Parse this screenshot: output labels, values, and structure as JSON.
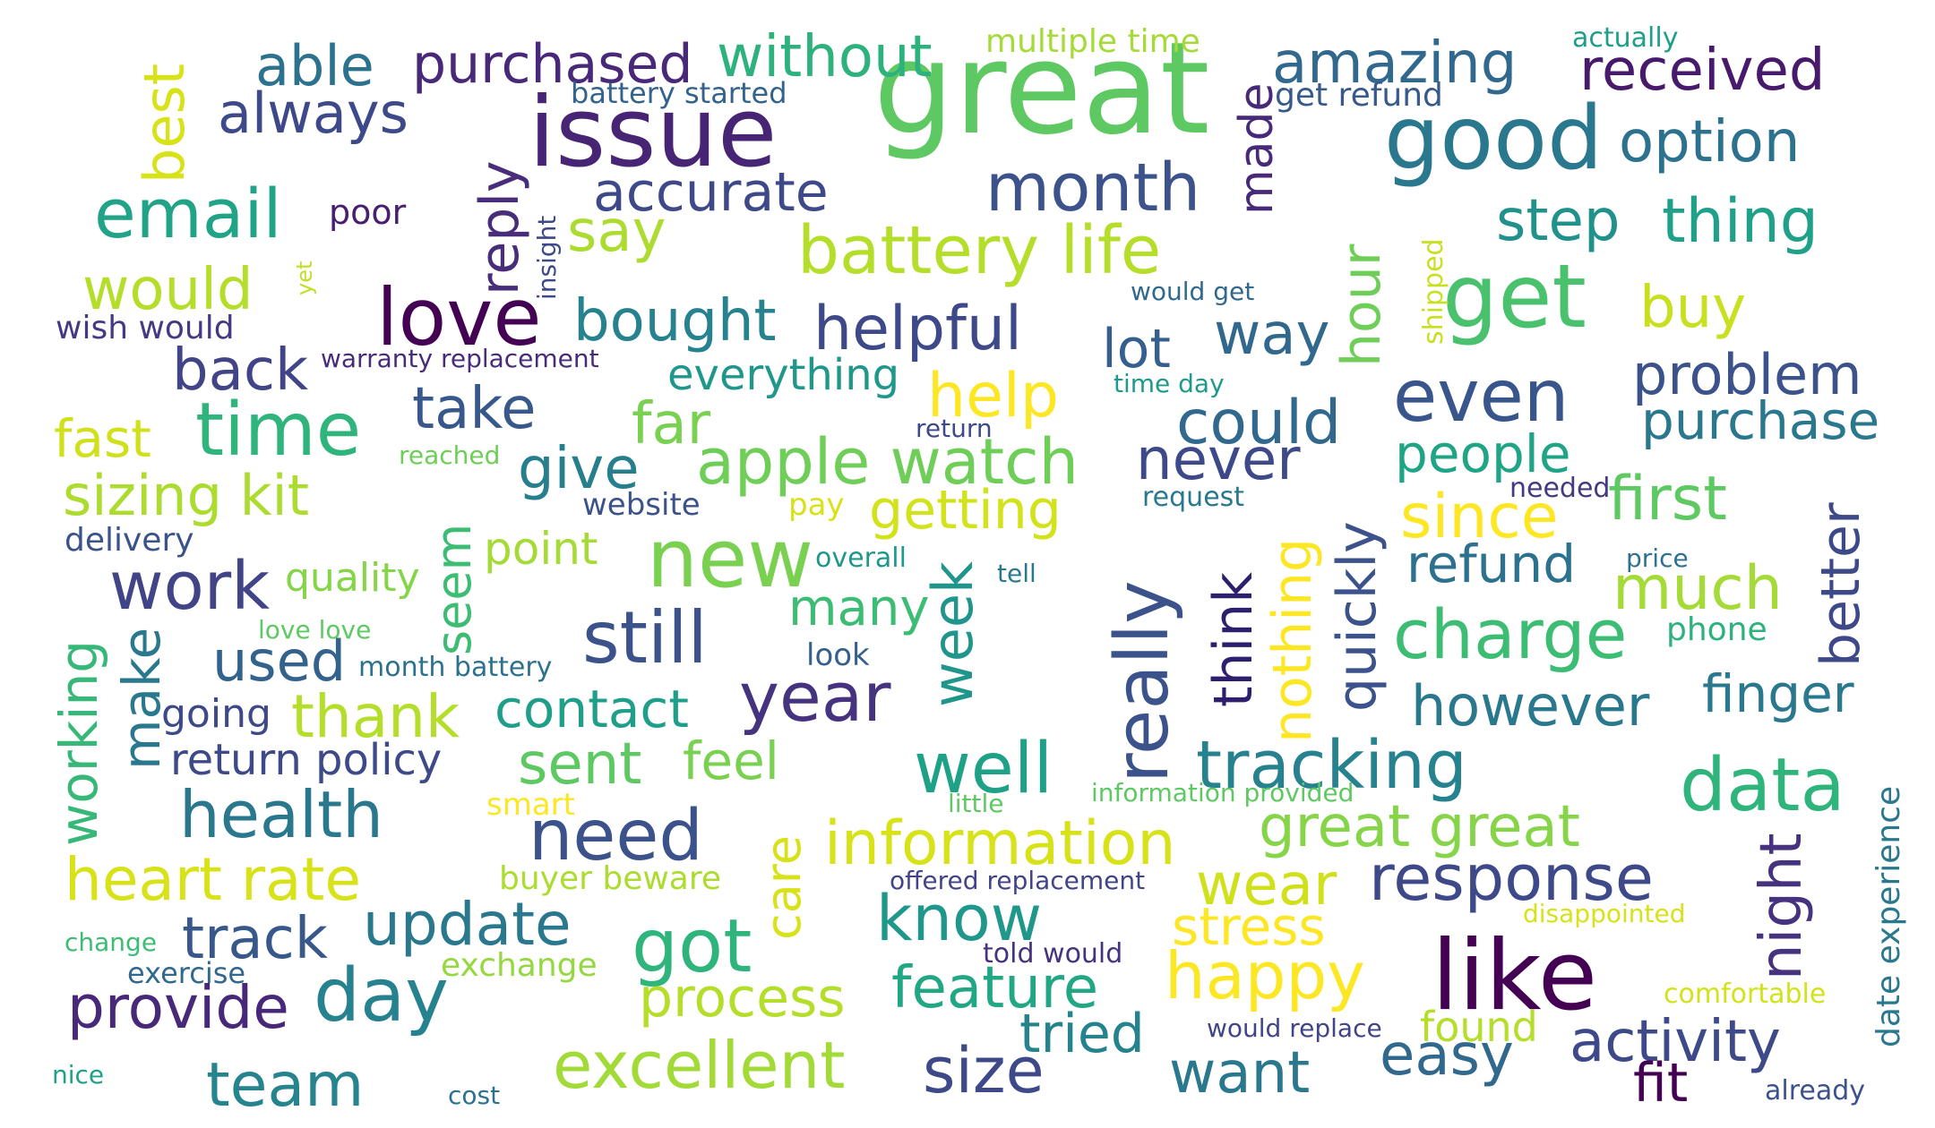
{
  "words": [
    {
      "text": "great",
      "color": "#5ec962"
    },
    {
      "text": "issue",
      "color": "#482475"
    },
    {
      "text": "like",
      "color": "#440154"
    },
    {
      "text": "good",
      "color": "#2a788e"
    },
    {
      "text": "get",
      "color": "#4ac16d"
    },
    {
      "text": "new",
      "color": "#7ad151"
    },
    {
      "text": "love",
      "color": "#440154"
    },
    {
      "text": "time",
      "color": "#2fb47c"
    },
    {
      "text": "really",
      "color": "#3b528b"
    },
    {
      "text": "day",
      "color": "#26828e"
    },
    {
      "text": "still",
      "color": "#3b528b"
    },
    {
      "text": "data",
      "color": "#2fb47c"
    },
    {
      "text": "even",
      "color": "#39568c"
    },
    {
      "text": "email",
      "color": "#20a386"
    },
    {
      "text": "month",
      "color": "#3b528b"
    },
    {
      "text": "battery life",
      "color": "#b5de2b"
    },
    {
      "text": "amazing",
      "color": "#31688e"
    },
    {
      "text": "purchased",
      "color": "#482878"
    },
    {
      "text": "without",
      "color": "#2db27d"
    },
    {
      "text": "received",
      "color": "#481a6c"
    },
    {
      "text": "able",
      "color": "#2c728e"
    },
    {
      "text": "always",
      "color": "#3e4989"
    },
    {
      "text": "best",
      "color": "#d8e219"
    },
    {
      "text": "option",
      "color": "#2c728e"
    },
    {
      "text": "accurate",
      "color": "#3e4989"
    },
    {
      "text": "reply",
      "color": "#472d7b"
    },
    {
      "text": "made",
      "color": "#482878"
    },
    {
      "text": "step",
      "color": "#21918c"
    },
    {
      "text": "thing",
      "color": "#1fa088"
    },
    {
      "text": "say",
      "color": "#addc30"
    },
    {
      "text": "would",
      "color": "#b5de2b"
    },
    {
      "text": "bought",
      "color": "#26828e"
    },
    {
      "text": "helpful",
      "color": "#3e4989"
    },
    {
      "text": "lot",
      "color": "#355f8d"
    },
    {
      "text": "way",
      "color": "#31688e"
    },
    {
      "text": "hour",
      "color": "#6ece58"
    },
    {
      "text": "buy",
      "color": "#c8e020"
    },
    {
      "text": "back",
      "color": "#414487"
    },
    {
      "text": "help",
      "color": "#fde725"
    },
    {
      "text": "take",
      "color": "#38588c"
    },
    {
      "text": "far",
      "color": "#7ad151"
    },
    {
      "text": "everything",
      "color": "#1f988b"
    },
    {
      "text": "could",
      "color": "#31688e"
    },
    {
      "text": "problem",
      "color": "#3b528b"
    },
    {
      "text": "purchase",
      "color": "#2a788e"
    },
    {
      "text": "fast",
      "color": "#d0e11c"
    },
    {
      "text": "give",
      "color": "#277f8e"
    },
    {
      "text": "apple watch",
      "color": "#6ece58"
    },
    {
      "text": "never",
      "color": "#3e4989"
    },
    {
      "text": "people",
      "color": "#20a486"
    },
    {
      "text": "since",
      "color": "#fde725"
    },
    {
      "text": "first",
      "color": "#5ec962"
    },
    {
      "text": "sizing kit",
      "color": "#addc30"
    },
    {
      "text": "getting",
      "color": "#d2e21b"
    },
    {
      "text": "seem",
      "color": "#3dbc74"
    },
    {
      "text": "quickly",
      "color": "#3b528b"
    },
    {
      "text": "nothing",
      "color": "#fde725"
    },
    {
      "text": "think",
      "color": "#2d1e6e"
    },
    {
      "text": "better",
      "color": "#3e4989"
    },
    {
      "text": "refund",
      "color": "#2c728e"
    },
    {
      "text": "much",
      "color": "#a5db36"
    },
    {
      "text": "work",
      "color": "#414487"
    },
    {
      "text": "quality",
      "color": "#86d549"
    },
    {
      "text": "point",
      "color": "#a5db36"
    },
    {
      "text": "week",
      "color": "#1f958b"
    },
    {
      "text": "charge",
      "color": "#3dbc74"
    },
    {
      "text": "working",
      "color": "#37b878"
    },
    {
      "text": "make",
      "color": "#2a788e"
    },
    {
      "text": "used",
      "color": "#33638d"
    },
    {
      "text": "many",
      "color": "#3dbc74"
    },
    {
      "text": "year",
      "color": "#46337f"
    },
    {
      "text": "however",
      "color": "#2a788e"
    },
    {
      "text": "finger",
      "color": "#2a788e"
    },
    {
      "text": "thank",
      "color": "#b5de2b"
    },
    {
      "text": "contact",
      "color": "#1f9e89"
    },
    {
      "text": "going",
      "color": "#3e4989"
    },
    {
      "text": "return policy",
      "color": "#3e4989"
    },
    {
      "text": "sent",
      "color": "#5ec962"
    },
    {
      "text": "feel",
      "color": "#7ad151"
    },
    {
      "text": "well",
      "color": "#1fa188"
    },
    {
      "text": "tracking",
      "color": "#26828e"
    },
    {
      "text": "health",
      "color": "#2a788e"
    },
    {
      "text": "need",
      "color": "#3b528b"
    },
    {
      "text": "care",
      "color": "#d8e219"
    },
    {
      "text": "information",
      "color": "#d8e219"
    },
    {
      "text": "great great",
      "color": "#86d549"
    },
    {
      "text": "response",
      "color": "#3e4989"
    },
    {
      "text": "night",
      "color": "#46337f"
    },
    {
      "text": "heart rate",
      "color": "#d8e219"
    },
    {
      "text": "update",
      "color": "#2a788e"
    },
    {
      "text": "track",
      "color": "#38588c"
    },
    {
      "text": "got",
      "color": "#2fb47c"
    },
    {
      "text": "know",
      "color": "#1f988b"
    },
    {
      "text": "wear",
      "color": "#d0e11c"
    },
    {
      "text": "stress",
      "color": "#fde725"
    },
    {
      "text": "happy",
      "color": "#fde725"
    },
    {
      "text": "activity",
      "color": "#3e4989"
    },
    {
      "text": "provide",
      "color": "#482878"
    },
    {
      "text": "process",
      "color": "#b5de2b"
    },
    {
      "text": "feature",
      "color": "#22a785"
    },
    {
      "text": "tried",
      "color": "#25838e"
    },
    {
      "text": "found",
      "color": "#b5de2b"
    },
    {
      "text": "easy",
      "color": "#31688e"
    },
    {
      "text": "excellent",
      "color": "#a2da37"
    },
    {
      "text": "size",
      "color": "#3e4989"
    },
    {
      "text": "want",
      "color": "#2a788e"
    },
    {
      "text": "fit",
      "color": "#440154"
    },
    {
      "text": "team",
      "color": "#25848e"
    },
    {
      "text": "exchange",
      "color": "#95d840"
    },
    {
      "text": "multiple time",
      "color": "#a5db36"
    },
    {
      "text": "actually",
      "color": "#1f9e89"
    },
    {
      "text": "battery started",
      "color": "#33638d"
    },
    {
      "text": "get refund",
      "color": "#38598c"
    },
    {
      "text": "poor",
      "color": "#481f70"
    },
    {
      "text": "insight",
      "color": "#3e4989"
    },
    {
      "text": "yet",
      "color": "#c2df23"
    },
    {
      "text": "shipped",
      "color": "#c8e020"
    },
    {
      "text": "would get",
      "color": "#31688e"
    },
    {
      "text": "wish would",
      "color": "#443983"
    },
    {
      "text": "warranty replacement",
      "color": "#472c7a"
    },
    {
      "text": "time day",
      "color": "#1f9a8a"
    },
    {
      "text": "return",
      "color": "#3e4989"
    },
    {
      "text": "reached",
      "color": "#6ece58"
    },
    {
      "text": "website",
      "color": "#3b528b"
    },
    {
      "text": "pay",
      "color": "#d8e219"
    },
    {
      "text": "request",
      "color": "#2a788e"
    },
    {
      "text": "needed",
      "color": "#443983"
    },
    {
      "text": "delivery",
      "color": "#3b528b"
    },
    {
      "text": "overall",
      "color": "#1f988b"
    },
    {
      "text": "tell",
      "color": "#2a788e"
    },
    {
      "text": "price",
      "color": "#2c728e"
    },
    {
      "text": "love love",
      "color": "#5ec962"
    },
    {
      "text": "look",
      "color": "#355f8d"
    },
    {
      "text": "phone",
      "color": "#2db27d"
    },
    {
      "text": "month battery",
      "color": "#2c728e"
    },
    {
      "text": "smart",
      "color": "#fde725"
    },
    {
      "text": "little",
      "color": "#5ec962"
    },
    {
      "text": "information provided",
      "color": "#5ec962"
    },
    {
      "text": "date experience",
      "color": "#2a788e"
    },
    {
      "text": "buyer beware",
      "color": "#addc30"
    },
    {
      "text": "offered replacement",
      "color": "#414487"
    },
    {
      "text": "disappointed",
      "color": "#d8e219"
    },
    {
      "text": "change",
      "color": "#3dbc74"
    },
    {
      "text": "exercise",
      "color": "#31688e"
    },
    {
      "text": "told would",
      "color": "#46337f"
    },
    {
      "text": "comfortable",
      "color": "#d2e21b"
    },
    {
      "text": "would replace",
      "color": "#414487"
    },
    {
      "text": "nice",
      "color": "#1fa188"
    },
    {
      "text": "cost",
      "color": "#2c728e"
    },
    {
      "text": "already",
      "color": "#3b528b"
    }
  ]
}
